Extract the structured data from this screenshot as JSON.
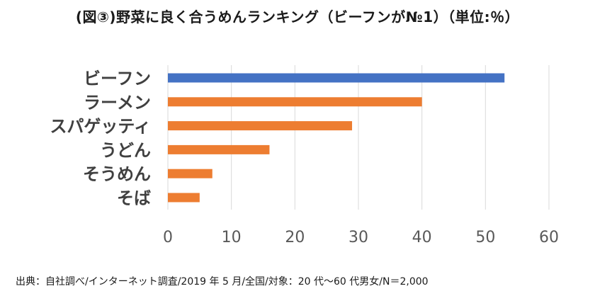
{
  "chart_data": {
    "type": "bar",
    "orientation": "horizontal",
    "title": "(図③)野菜に良く合うめんランキング（ビーフンが№1）（単位:％）",
    "categories": [
      "ビーフン",
      "ラーメン",
      "スパゲッティ",
      "うどん",
      "そうめん",
      "そば"
    ],
    "values": [
      53,
      40,
      29,
      16,
      7,
      5
    ],
    "bar_colors": [
      "#4472C4",
      "#ED7D31",
      "#ED7D31",
      "#ED7D31",
      "#ED7D31",
      "#ED7D31"
    ],
    "xlim": [
      0,
      60
    ],
    "xticks": [
      "0",
      "10",
      "20",
      "30",
      "40",
      "50",
      "60"
    ],
    "grid": "vertical",
    "legend": "none"
  },
  "source_note": "出典：自社調べ/インターネット調査/2019 年 5 月/全国/対象：20 代～60 代男女/N＝2,000",
  "colors": {
    "grid": "#d9d9d9",
    "axis_text": "#595959",
    "category_text": "#404040"
  }
}
